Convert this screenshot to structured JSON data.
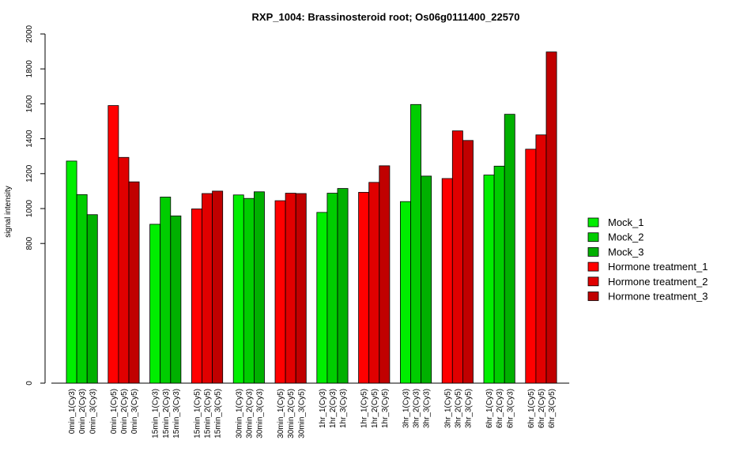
{
  "chart_data": {
    "type": "bar",
    "title": "RXP_1004: Brassinosteroid root; Os06g0111400_22570",
    "xlabel": "",
    "ylabel": "signal intensity",
    "y_ticks": [
      0,
      800,
      1000,
      1200,
      1400,
      1600,
      1800,
      2000
    ],
    "y_tick_labels": [
      "0",
      "800",
      "1000",
      "1200",
      "1400",
      "1600",
      "1800",
      "2000"
    ],
    "ylim": [
      0,
      2000
    ],
    "legend_position": "right",
    "groups": [
      {
        "labels": [
          "0min_1(Cy3)",
          "0min_2(Cy3)",
          "0min_3(Cy3)"
        ],
        "values": [
          1272,
          1080,
          965
        ],
        "colors": [
          "#00ee00",
          "#00cd00",
          "#00b000"
        ]
      },
      {
        "labels": [
          "0min_1(Cy5)",
          "0min_2(Cy5)",
          "0min_3(Cy5)"
        ],
        "values": [
          1590,
          1293,
          1153
        ],
        "colors": [
          "#ff0000",
          "#e00000",
          "#c00000"
        ]
      },
      {
        "labels": [
          "15min_1(Cy3)",
          "15min_2(Cy3)",
          "15min_3(Cy3)"
        ],
        "values": [
          910,
          1066,
          958
        ],
        "colors": [
          "#00ee00",
          "#00cd00",
          "#00b000"
        ]
      },
      {
        "labels": [
          "15min_1(Cy5)",
          "15min_2(Cy5)",
          "15min_3(Cy5)"
        ],
        "values": [
          998,
          1086,
          1100
        ],
        "colors": [
          "#ff0000",
          "#e00000",
          "#c00000"
        ]
      },
      {
        "labels": [
          "30min_1(Cy3)",
          "30min_2(Cy3)",
          "30min_3(Cy3)"
        ],
        "values": [
          1078,
          1058,
          1096
        ],
        "colors": [
          "#00ee00",
          "#00cd00",
          "#00b000"
        ]
      },
      {
        "labels": [
          "30min_1(Cy5)",
          "30min_2(Cy5)",
          "30min_3(Cy5)"
        ],
        "values": [
          1045,
          1088,
          1086
        ],
        "colors": [
          "#ff0000",
          "#e00000",
          "#c00000"
        ]
      },
      {
        "labels": [
          "1hr_1(Cy3)",
          "1hr_2(Cy3)",
          "1hr_3(Cy3)"
        ],
        "values": [
          978,
          1088,
          1115
        ],
        "colors": [
          "#00ee00",
          "#00cd00",
          "#00b000"
        ]
      },
      {
        "labels": [
          "1hr_1(Cy5)",
          "1hr_2(Cy5)",
          "1hr_3(Cy5)"
        ],
        "values": [
          1093,
          1150,
          1245
        ],
        "colors": [
          "#ff0000",
          "#e00000",
          "#c00000"
        ]
      },
      {
        "labels": [
          "3hr_1(Cy3)",
          "3hr_2(Cy3)",
          "3hr_3(Cy3)"
        ],
        "values": [
          1040,
          1596,
          1186
        ],
        "colors": [
          "#00ee00",
          "#00cd00",
          "#00b000"
        ]
      },
      {
        "labels": [
          "3hr_1(Cy5)",
          "3hr_2(Cy5)",
          "3hr_3(Cy5)"
        ],
        "values": [
          1172,
          1445,
          1390
        ],
        "colors": [
          "#ff0000",
          "#e00000",
          "#c00000"
        ]
      },
      {
        "labels": [
          "6hr_1(Cy3)",
          "6hr_2(Cy3)",
          "6hr_3(Cy3)"
        ],
        "values": [
          1192,
          1243,
          1540
        ],
        "colors": [
          "#00ee00",
          "#00cd00",
          "#00b000"
        ]
      },
      {
        "labels": [
          "6hr_1(Cy5)",
          "6hr_2(Cy5)",
          "6hr_3(Cy5)"
        ],
        "values": [
          1340,
          1422,
          1897
        ],
        "colors": [
          "#ff0000",
          "#e00000",
          "#c00000"
        ]
      }
    ],
    "legend": [
      {
        "name": "Mock_1",
        "color": "#00ee00"
      },
      {
        "name": "Mock_2",
        "color": "#00cd00"
      },
      {
        "name": "Mock_3",
        "color": "#00b000"
      },
      {
        "name": "Hormone treatment_1",
        "color": "#ff0000"
      },
      {
        "name": "Hormone treatment_2",
        "color": "#e00000"
      },
      {
        "name": "Hormone treatment_3",
        "color": "#c00000"
      }
    ]
  }
}
